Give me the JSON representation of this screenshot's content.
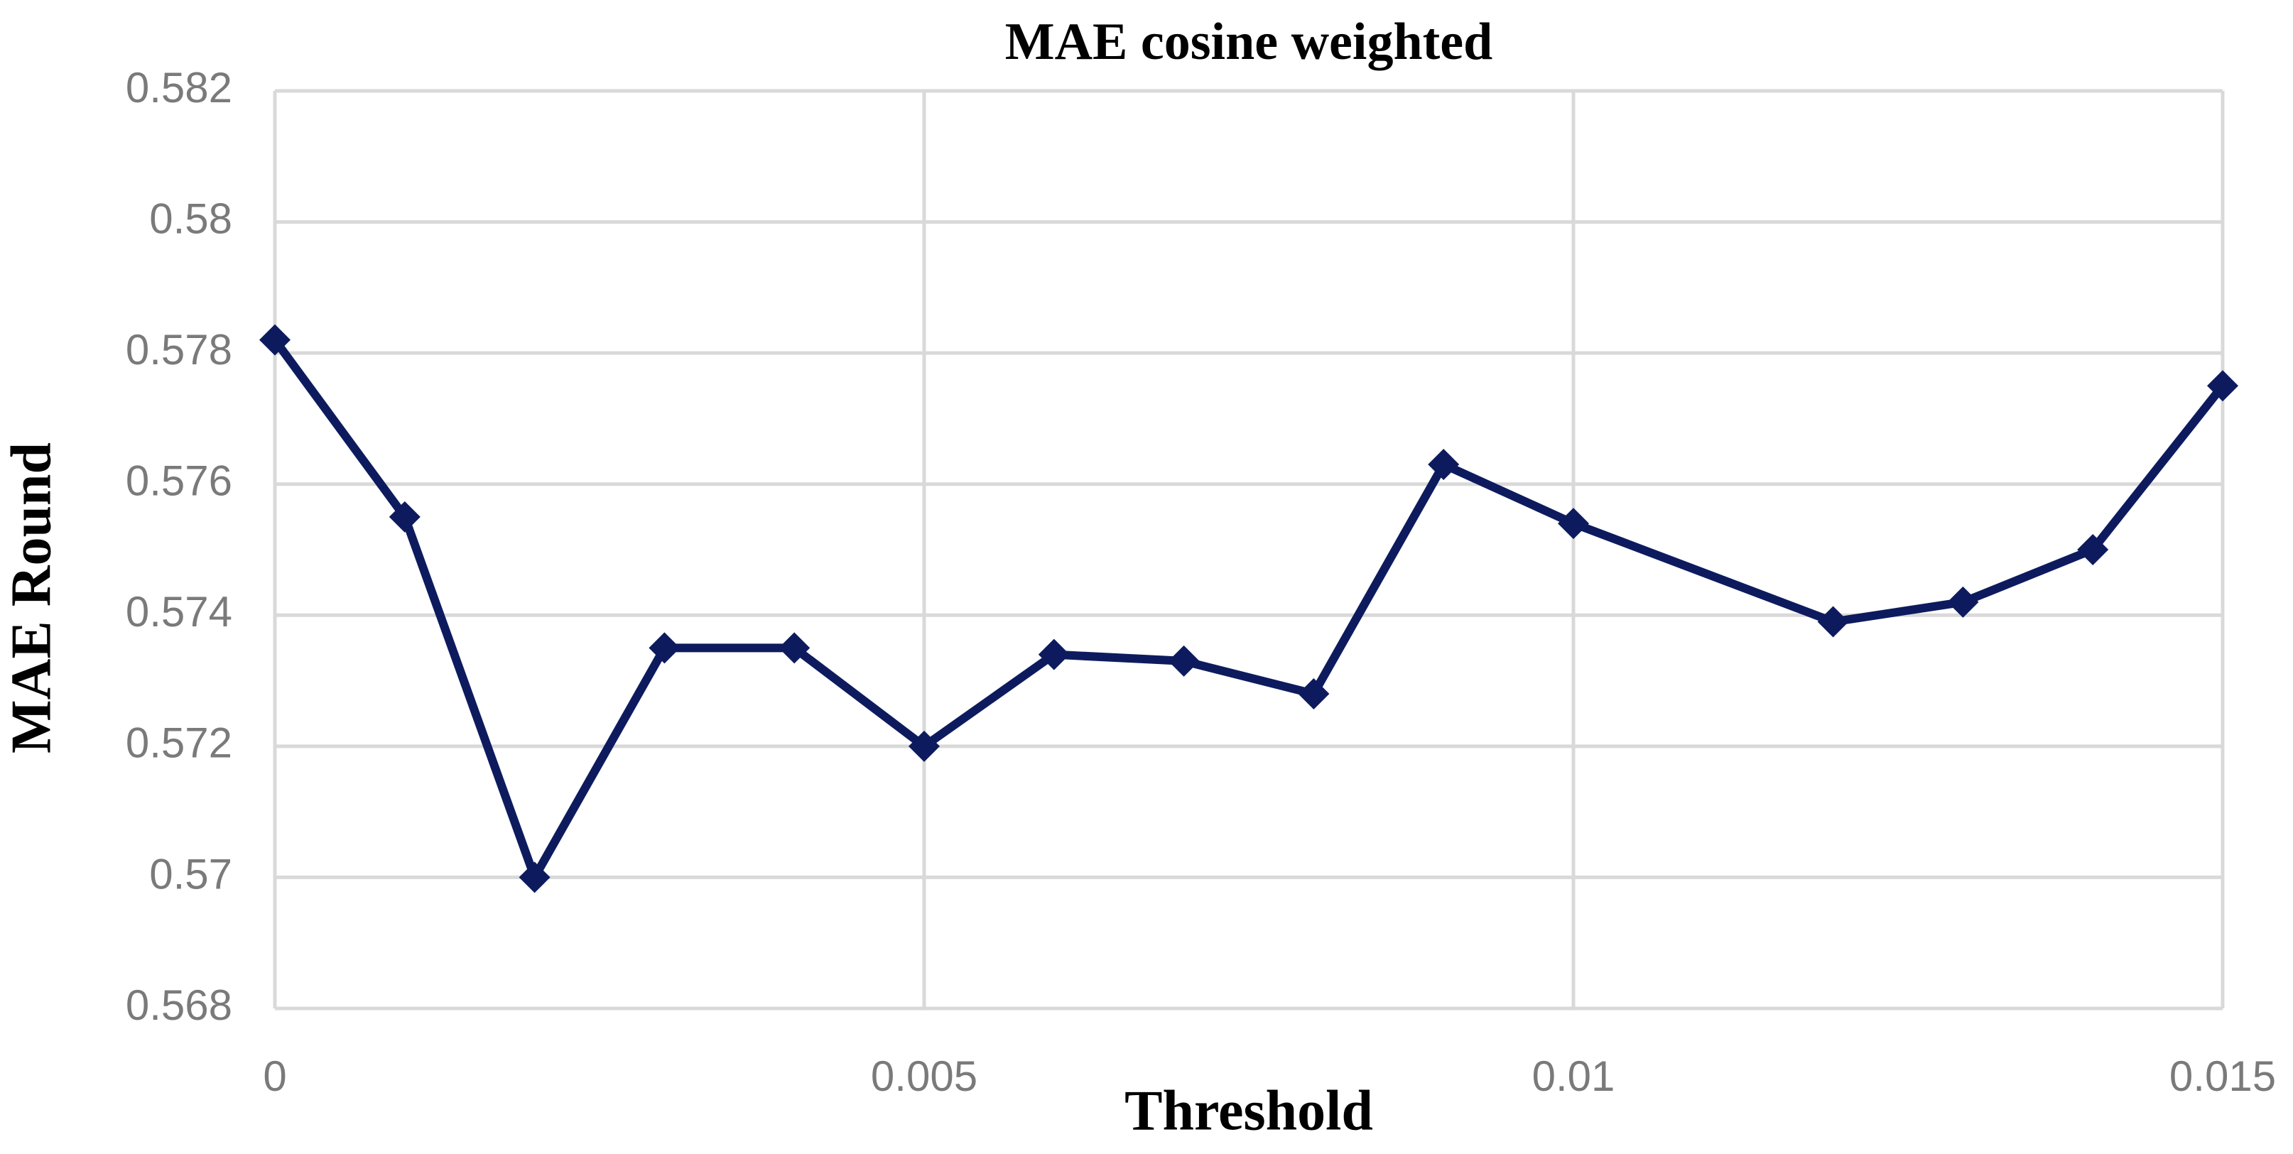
{
  "chart_data": {
    "type": "line",
    "title": "MAE cosine weighted",
    "x_label": "Threshold",
    "y_label": "MAE Round",
    "x": [
      0,
      0.001,
      0.002,
      0.003,
      0.004,
      0.005,
      0.006,
      0.007,
      0.008,
      0.009,
      0.01,
      0.012,
      0.013,
      0.014,
      0.015
    ],
    "series": [
      {
        "name": "MAE Round",
        "color": "#0d1b5e",
        "values": [
          0.5782,
          0.5755,
          0.57,
          0.5735,
          0.5735,
          0.572,
          0.5734,
          0.5733,
          0.5728,
          0.5763,
          0.5754,
          0.5739,
          0.5742,
          0.575,
          0.5775
        ]
      }
    ],
    "xlim": [
      0,
      0.015
    ],
    "xticks": [
      0,
      0.005,
      0.01,
      0.015
    ],
    "ylim": [
      0.568,
      0.582
    ],
    "yticks": [
      0.568,
      0.57,
      0.572,
      0.574,
      0.576,
      0.578,
      0.58,
      0.582
    ],
    "grid": true
  }
}
